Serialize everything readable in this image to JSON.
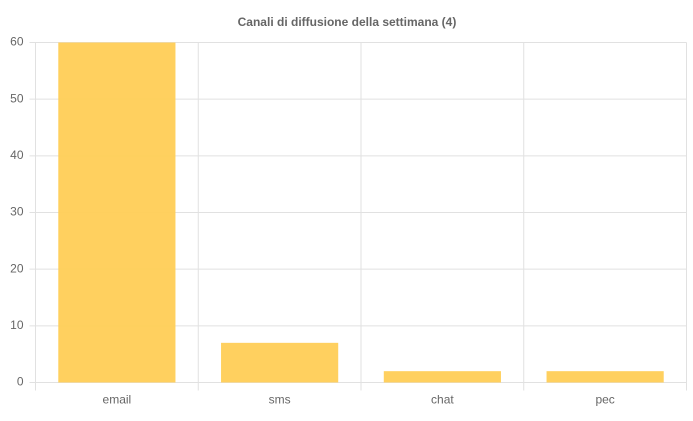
{
  "chart_data": {
    "type": "bar",
    "title": "Canali di diffusione della settimana (4)",
    "categories": [
      "email",
      "sms",
      "chat",
      "pec"
    ],
    "values": [
      60,
      7,
      2,
      2
    ],
    "color": "#ffcd56",
    "ylim": [
      0,
      60
    ],
    "yticks": [
      0,
      10,
      20,
      30,
      40,
      50,
      60
    ],
    "grid": true
  }
}
